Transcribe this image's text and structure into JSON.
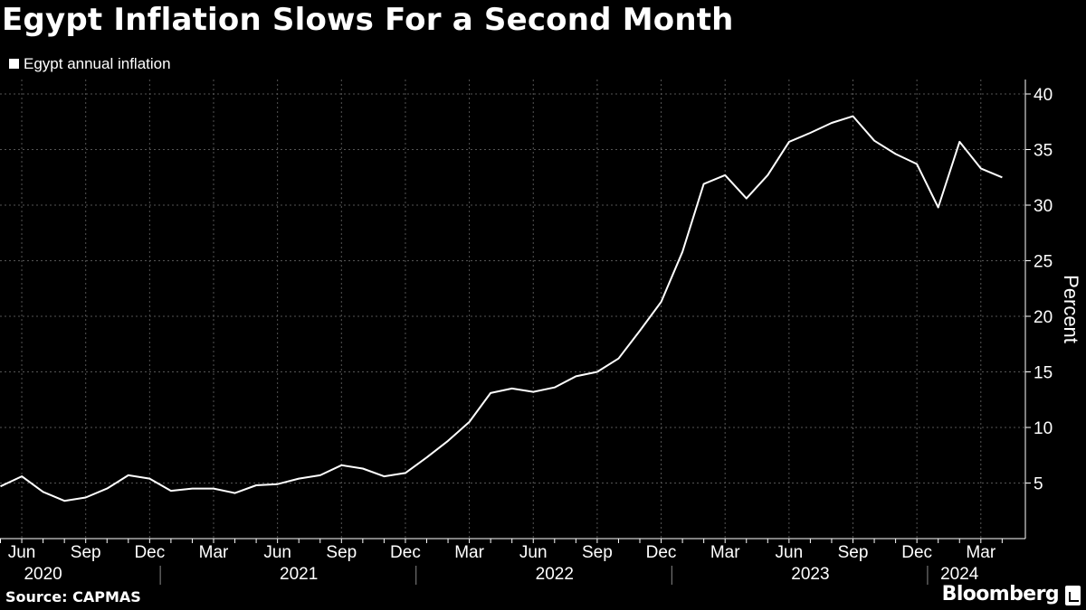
{
  "title": "Egypt Inflation Slows For a Second Month",
  "source": "Source: CAPMAS",
  "brand": "Bloomberg",
  "colors": {
    "background": "#000000",
    "line": "#ffffff",
    "grid": "#555555"
  },
  "chart_data": {
    "type": "line",
    "title": "Egypt Inflation Slows For a Second Month",
    "ylabel": "Percent",
    "xlabel": "",
    "ylim": [
      0,
      40
    ],
    "yticks": [
      5,
      10,
      15,
      20,
      25,
      30,
      35,
      40
    ],
    "xlim": [
      "2020-05",
      "2024-04"
    ],
    "grid": true,
    "legend_position": "top-left",
    "x_tick_labels": [
      {
        "date": "2020-06",
        "label": "Jun"
      },
      {
        "date": "2020-09",
        "label": "Sep"
      },
      {
        "date": "2020-12",
        "label": "Dec"
      },
      {
        "date": "2021-03",
        "label": "Mar"
      },
      {
        "date": "2021-06",
        "label": "Jun"
      },
      {
        "date": "2021-09",
        "label": "Sep"
      },
      {
        "date": "2021-12",
        "label": "Dec"
      },
      {
        "date": "2022-03",
        "label": "Mar"
      },
      {
        "date": "2022-06",
        "label": "Jun"
      },
      {
        "date": "2022-09",
        "label": "Sep"
      },
      {
        "date": "2022-12",
        "label": "Dec"
      },
      {
        "date": "2023-03",
        "label": "Mar"
      },
      {
        "date": "2023-06",
        "label": "Jun"
      },
      {
        "date": "2023-09",
        "label": "Sep"
      },
      {
        "date": "2023-12",
        "label": "Dec"
      },
      {
        "date": "2024-03",
        "label": "Mar"
      }
    ],
    "year_labels": [
      {
        "date": "2020-07",
        "label": "2020"
      },
      {
        "date": "2021-07",
        "label": "2021"
      },
      {
        "date": "2022-07",
        "label": "2022"
      },
      {
        "date": "2023-07",
        "label": "2023"
      },
      {
        "date": "2024-02",
        "label": "2024"
      }
    ],
    "series": [
      {
        "name": "Egypt annual inflation",
        "x": [
          "2020-05",
          "2020-06",
          "2020-07",
          "2020-08",
          "2020-09",
          "2020-10",
          "2020-11",
          "2020-12",
          "2021-01",
          "2021-02",
          "2021-03",
          "2021-04",
          "2021-05",
          "2021-06",
          "2021-07",
          "2021-08",
          "2021-09",
          "2021-10",
          "2021-11",
          "2021-12",
          "2022-01",
          "2022-02",
          "2022-03",
          "2022-04",
          "2022-05",
          "2022-06",
          "2022-07",
          "2022-08",
          "2022-09",
          "2022-10",
          "2022-11",
          "2022-12",
          "2023-01",
          "2023-02",
          "2023-03",
          "2023-04",
          "2023-05",
          "2023-06",
          "2023-07",
          "2023-08",
          "2023-09",
          "2023-10",
          "2023-11",
          "2023-12",
          "2024-01",
          "2024-02",
          "2024-03",
          "2024-04"
        ],
        "values": [
          4.7,
          5.6,
          4.2,
          3.4,
          3.7,
          4.5,
          5.7,
          5.4,
          4.3,
          4.5,
          4.5,
          4.1,
          4.8,
          4.9,
          5.4,
          5.7,
          6.6,
          6.3,
          5.6,
          5.9,
          7.3,
          8.8,
          10.5,
          13.1,
          13.5,
          13.2,
          13.6,
          14.6,
          15.0,
          16.2,
          18.7,
          21.3,
          25.8,
          31.9,
          32.7,
          30.6,
          32.7,
          35.7,
          36.5,
          37.4,
          38.0,
          35.8,
          34.6,
          33.7,
          29.8,
          35.7,
          33.3,
          32.5
        ]
      }
    ]
  }
}
